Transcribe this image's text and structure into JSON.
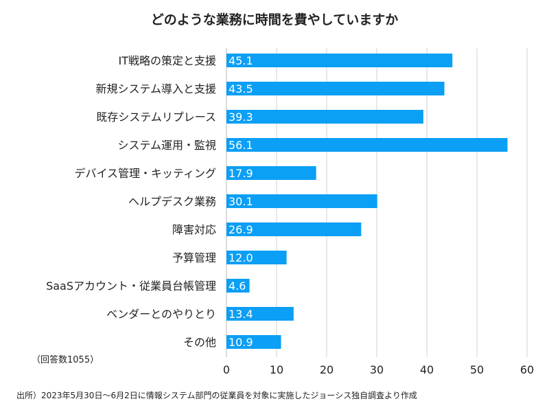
{
  "chart_data": {
    "type": "bar",
    "orientation": "horizontal",
    "title": "どのような業務に時間を費やしていますか",
    "categories": [
      "IT戦略の策定と支援",
      "新規システム導入と支援",
      "既存システムリプレース",
      "システム運用・監視",
      "デバイス管理・キッティング",
      "ヘルプデスク業務",
      "障害対応",
      "予算管理",
      "SaaSアカウント・従業員台帳管理",
      "ベンダーとのやりとり",
      "その他"
    ],
    "values": [
      45.1,
      43.5,
      39.3,
      56.1,
      17.9,
      30.1,
      26.9,
      12.0,
      4.6,
      13.4,
      10.9
    ],
    "value_labels": [
      "45.1",
      "43.5",
      "39.3",
      "56.1",
      "17.9",
      "30.1",
      "26.9",
      "12.0",
      "4.6",
      "13.4",
      "10.9"
    ],
    "xlim": [
      0,
      60
    ],
    "xticks": [
      "0",
      "10",
      "20",
      "30",
      "40",
      "50",
      "60"
    ],
    "xlabel": "",
    "ylabel": "",
    "grid": true,
    "bar_color": "#0b9ff5"
  },
  "respondents_note": "（回答数1055）",
  "source_note": "出所）2023年5月30日〜6月2日に情報システム部門の従業員を対象に実施したジョーシス独自調査より作成"
}
